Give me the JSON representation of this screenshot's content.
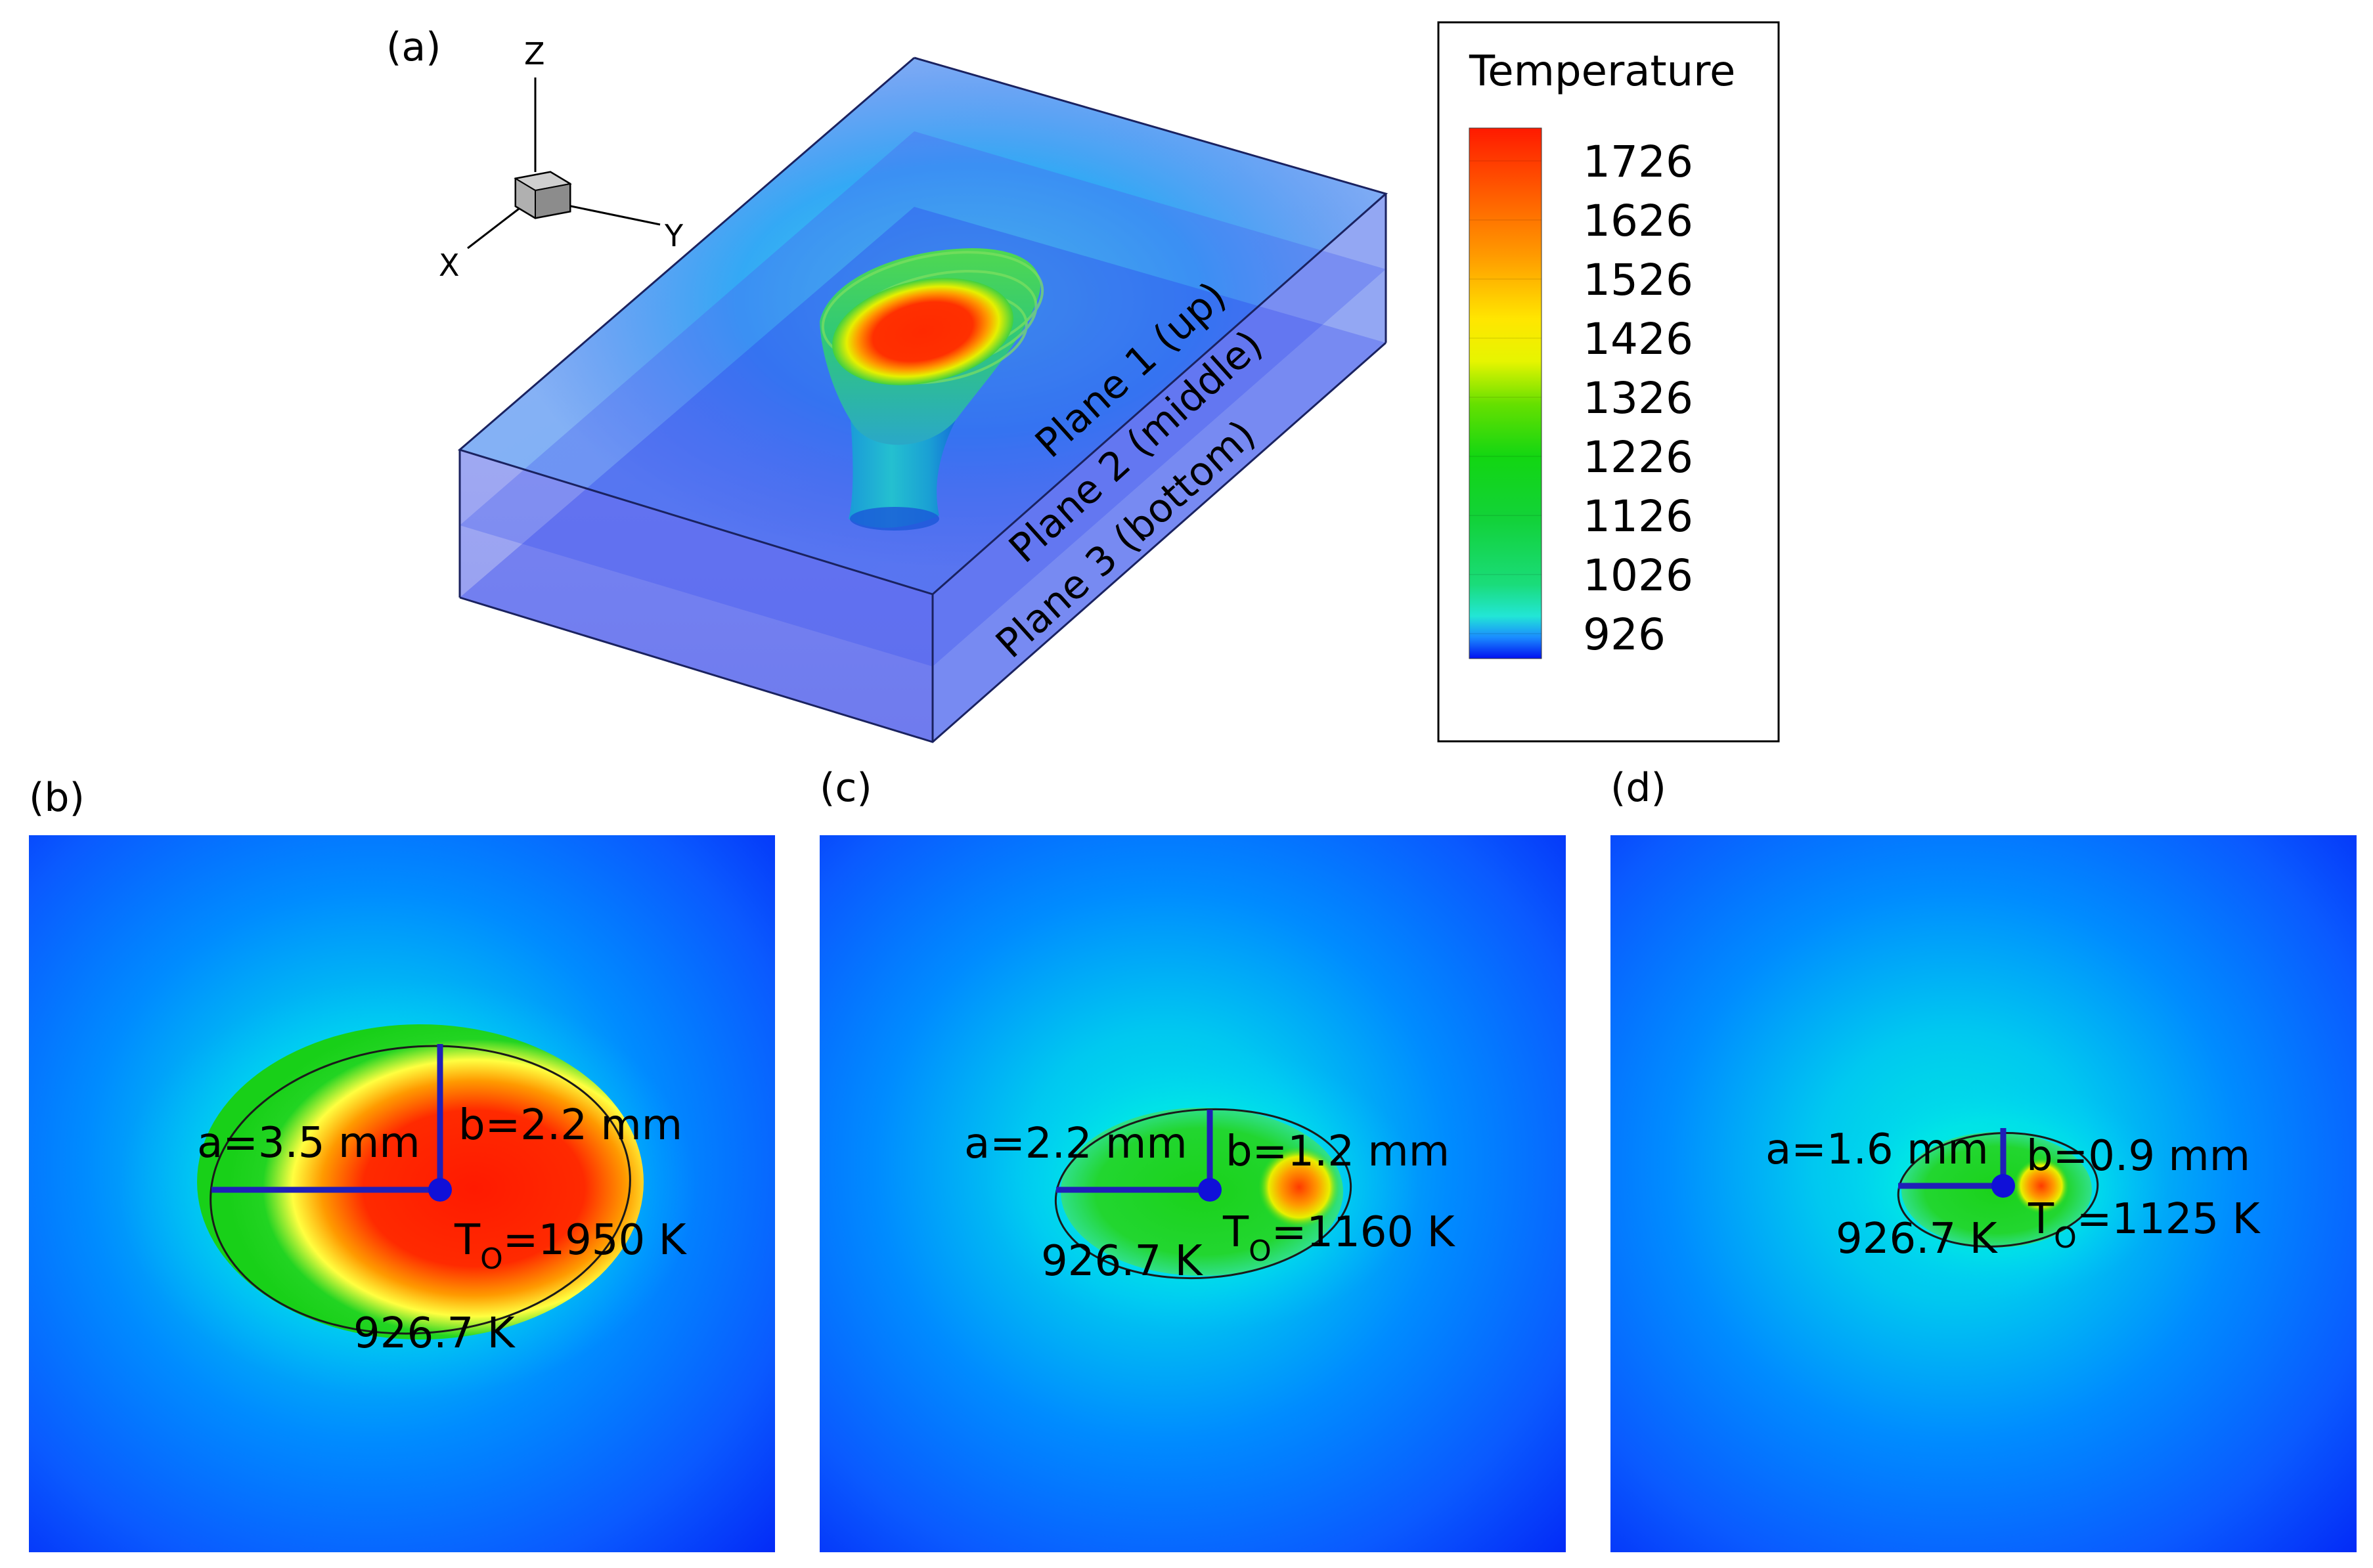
{
  "panels": {
    "a": "(a)",
    "b": "(b)",
    "c": "(c)",
    "d": "(d)"
  },
  "axes": {
    "z": "Z",
    "y": "Y",
    "x": "X"
  },
  "planes": {
    "p1": "Plane 1 (up)",
    "p2": "Plane 2 (middle)",
    "p3": "Plane 3 (bottom)"
  },
  "legend": {
    "title": "Temperature",
    "ticks": [
      "1726",
      "1626",
      "1526",
      "1426",
      "1326",
      "1226",
      "1126",
      "1026",
      "926"
    ]
  },
  "sections": {
    "b": {
      "a_label": "a=3.5 mm",
      "b_label": "b=2.2 mm",
      "t_prefix": "T",
      "t_sub": "O",
      "t_value": "=1950 K",
      "iso": "926.7 K"
    },
    "c": {
      "a_label": "a=2.2 mm",
      "b_label": "b=1.2 mm",
      "t_prefix": "T",
      "t_sub": "O",
      "t_value": "=1160 K",
      "iso": "926.7 K"
    },
    "d": {
      "a_label": "a=1.6 mm",
      "b_label": "b=0.9 mm",
      "t_prefix": "T",
      "t_sub": "O",
      "t_value": "=1125 K",
      "iso": "926.7 K"
    }
  },
  "colors": {
    "box_top": "#9fb9f2",
    "box_face": "#8d98ee",
    "heat_red": "#ff2a00",
    "heat_orange": "#ff8c00",
    "heat_yellow": "#ffff00",
    "heat_green": "#1fd21f",
    "heat_cyan": "#00e5e5",
    "heat_blue": "#0a5dff",
    "deep_blue": "#0010f0",
    "axis_line": "#1f1fb8"
  }
}
